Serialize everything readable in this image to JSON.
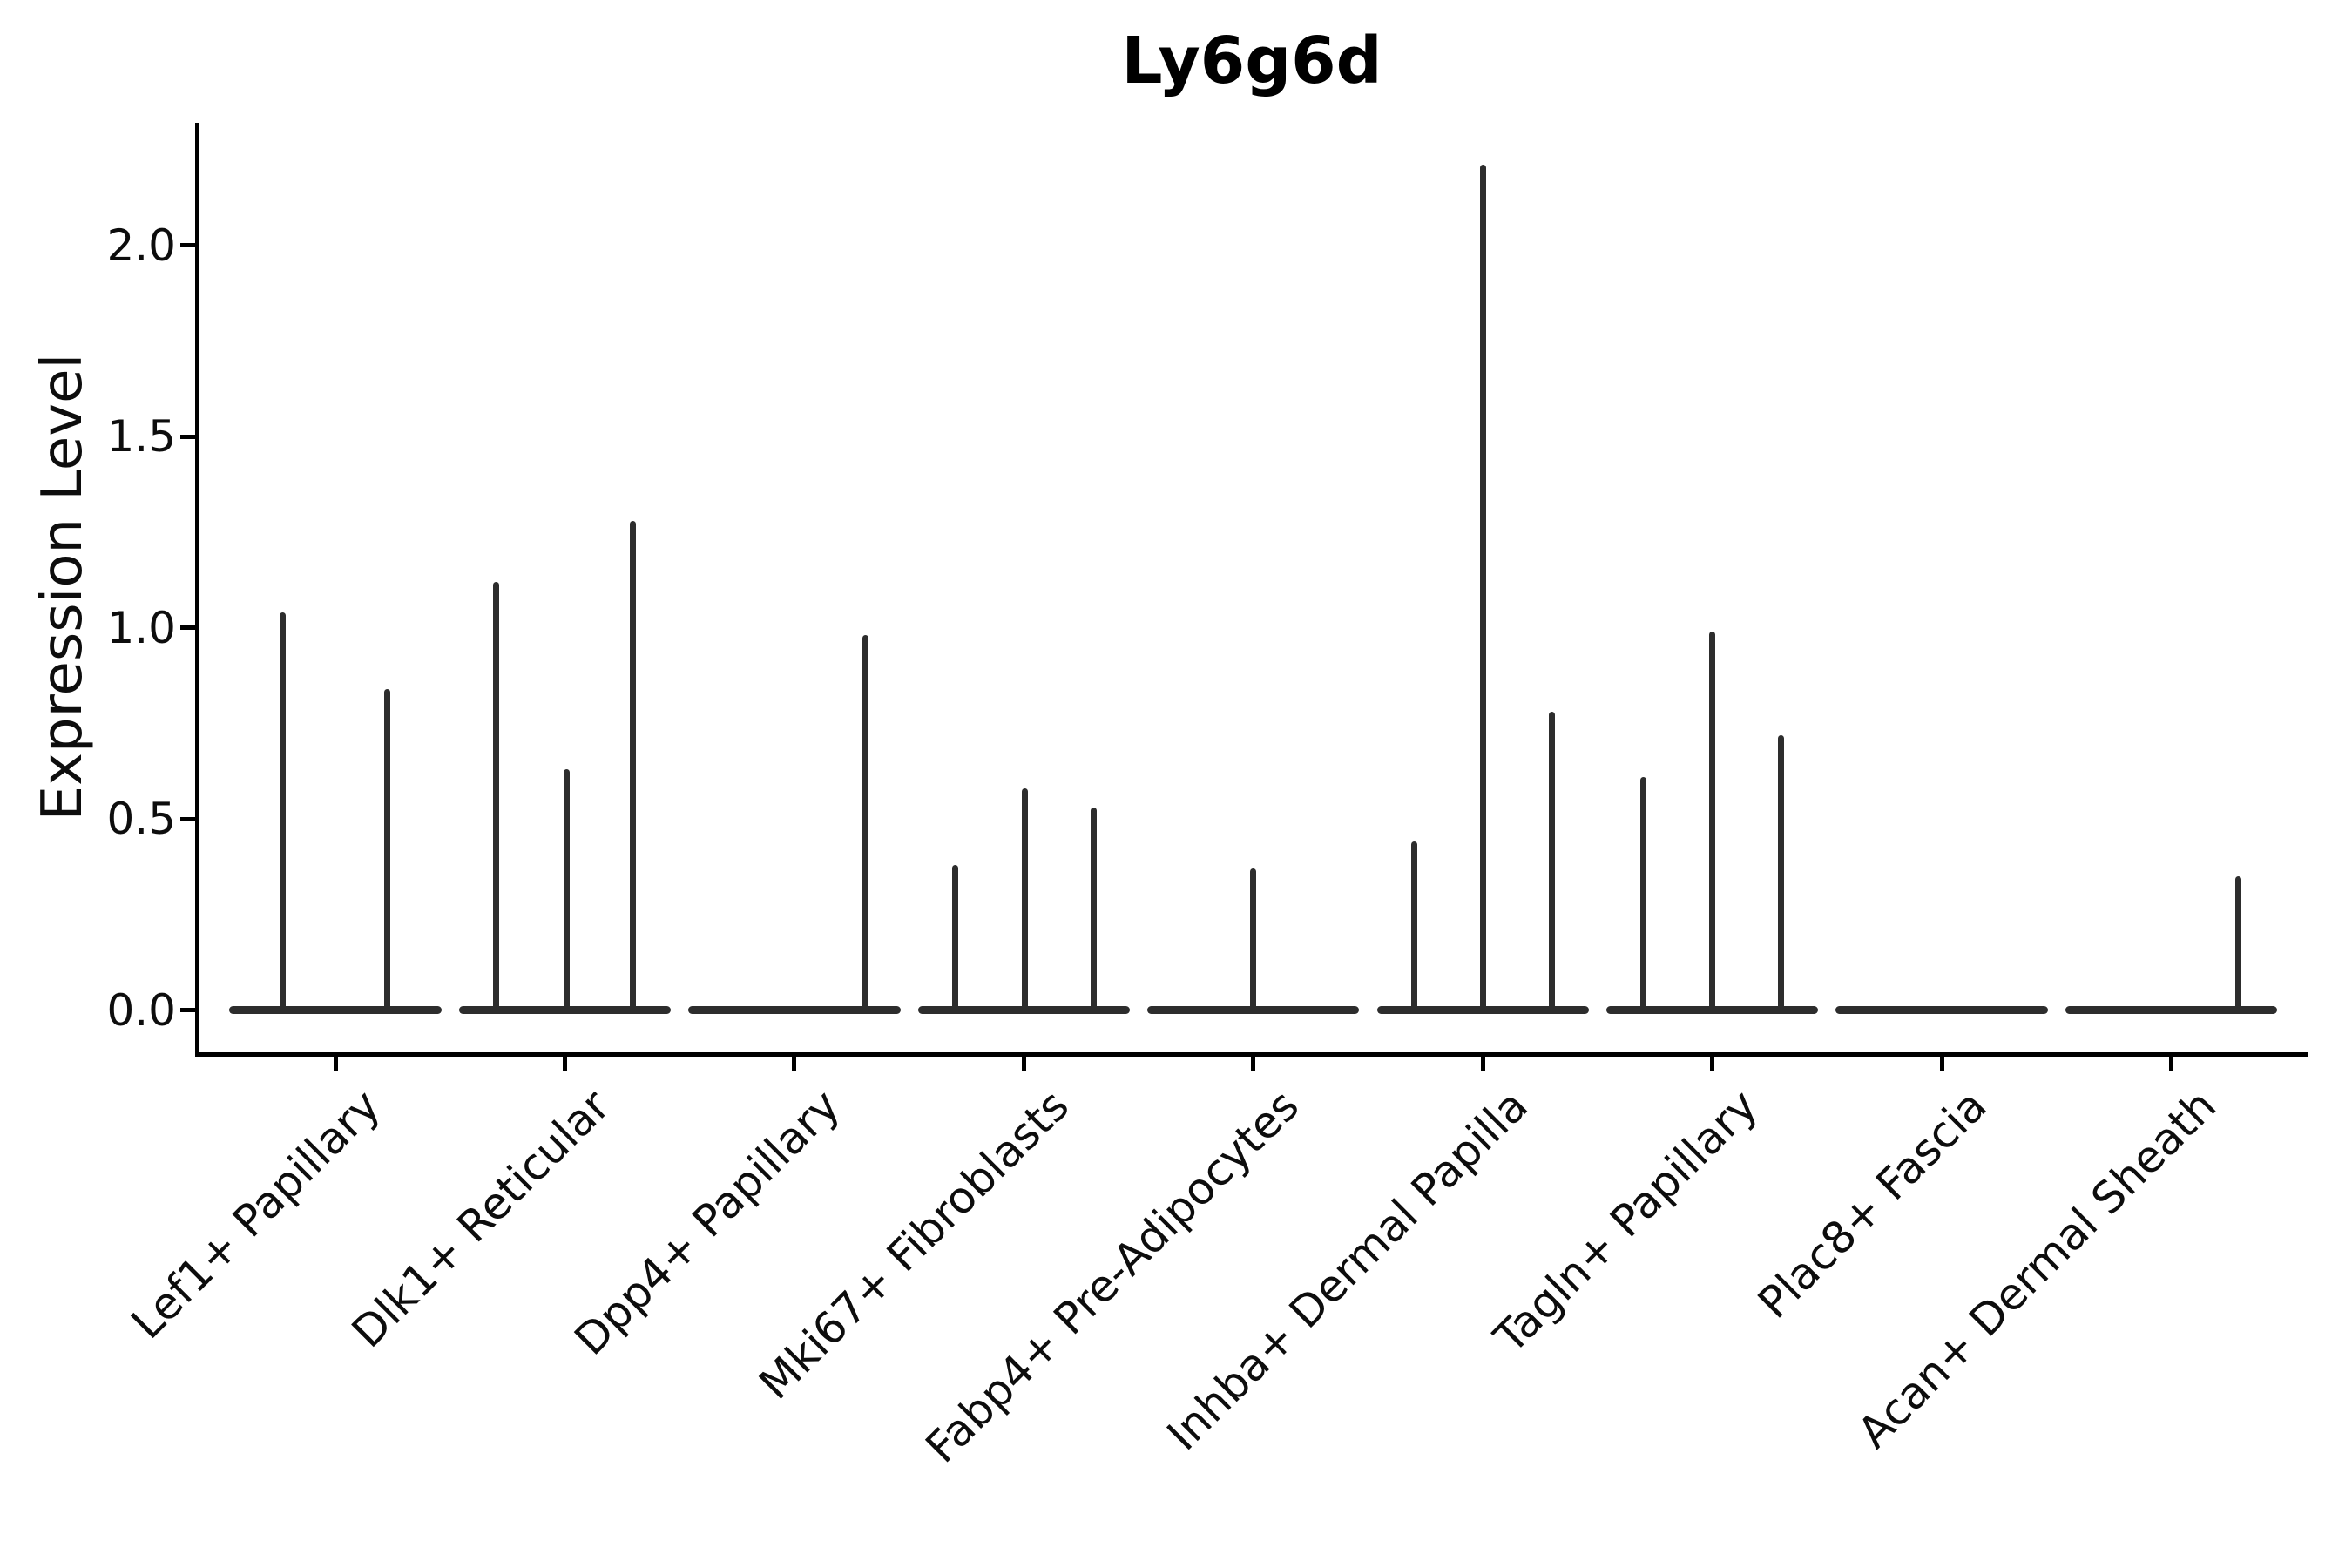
{
  "title": "Ly6g6d",
  "y_axis": {
    "label": "Expression Level",
    "tick_labels": [
      "0.0",
      "0.5",
      "1.0",
      "1.5",
      "2.0"
    ]
  },
  "x_axis": {
    "tick_labels": [
      "Lef1+ Papillary",
      "Dlk1+ Reticular",
      "Dpp4+ Papillary",
      "Mki67+ Fibroblasts",
      "Fabp4+ Pre-Adipocytes",
      "Inhba+ Dermal Papilla",
      "Tagln+ Papillary",
      "Plac8+ Fascia",
      "Acan+ Dermal Sheath"
    ]
  },
  "colors": {
    "violin_stroke": "#2d2d2d",
    "axis": "#000000",
    "text": "#0d0d0d",
    "background": "#ffffff"
  },
  "chart_data": {
    "type": "violin",
    "title": "Ly6g6d",
    "xlabel": "",
    "ylabel": "Expression Level",
    "ylim": [
      -0.11,
      2.32
    ],
    "yticks": [
      0.0,
      0.5,
      1.0,
      1.5,
      2.0
    ],
    "grid": false,
    "legend": false,
    "note": "Collapsed violins: each category is a flat density bar at expression 0 with thin spikes rising to the expression values of the few expressing cells. dx is the spike offset within the category slot (fraction of slot width).",
    "categories": [
      "Lef1+ Papillary",
      "Dlk1+ Reticular",
      "Dpp4+ Papillary",
      "Mki67+ Fibroblasts",
      "Fabp4+ Pre-Adipocytes",
      "Inhba+ Dermal Papilla",
      "Tagln+ Papillary",
      "Plac8+ Fascia",
      "Acan+ Dermal Sheath"
    ],
    "series": [
      {
        "name": "Lef1+ Papillary",
        "baseline": 0.0,
        "spikes": [
          {
            "dx": -0.228,
            "value": 1.04
          },
          {
            "dx": 0.224,
            "value": 0.84
          }
        ]
      },
      {
        "name": "Dlk1+ Reticular",
        "baseline": 0.0,
        "spikes": [
          {
            "dx": -0.298,
            "value": 1.12
          },
          {
            "dx": 0.006,
            "value": 0.63
          },
          {
            "dx": 0.298,
            "value": 1.28
          }
        ]
      },
      {
        "name": "Dpp4+ Papillary",
        "baseline": 0.0,
        "spikes": [
          {
            "dx": 0.308,
            "value": 0.98
          }
        ]
      },
      {
        "name": "Mki67+ Fibroblasts",
        "baseline": 0.0,
        "spikes": [
          {
            "dx": -0.3,
            "value": 0.38
          },
          {
            "dx": 0.005,
            "value": 0.58
          },
          {
            "dx": 0.305,
            "value": 0.53
          }
        ]
      },
      {
        "name": "Fabp4+ Pre-Adipocytes",
        "baseline": 0.0,
        "spikes": [
          {
            "dx": 0.0,
            "value": 0.37
          }
        ]
      },
      {
        "name": "Inhba+ Dermal Papilla",
        "baseline": 0.0,
        "spikes": [
          {
            "dx": -0.3,
            "value": 0.44
          },
          {
            "dx": 0.0,
            "value": 2.21
          },
          {
            "dx": 0.3,
            "value": 0.78
          }
        ]
      },
      {
        "name": "Tagln+ Papillary",
        "baseline": 0.0,
        "spikes": [
          {
            "dx": -0.3,
            "value": 0.61
          },
          {
            "dx": 0.0,
            "value": 0.99
          },
          {
            "dx": 0.3,
            "value": 0.72
          }
        ]
      },
      {
        "name": "Plac8+ Fascia",
        "baseline": 0.0,
        "spikes": []
      },
      {
        "name": "Acan+ Dermal Sheath",
        "baseline": 0.0,
        "spikes": [
          {
            "dx": 0.294,
            "value": 0.35
          }
        ]
      }
    ]
  }
}
